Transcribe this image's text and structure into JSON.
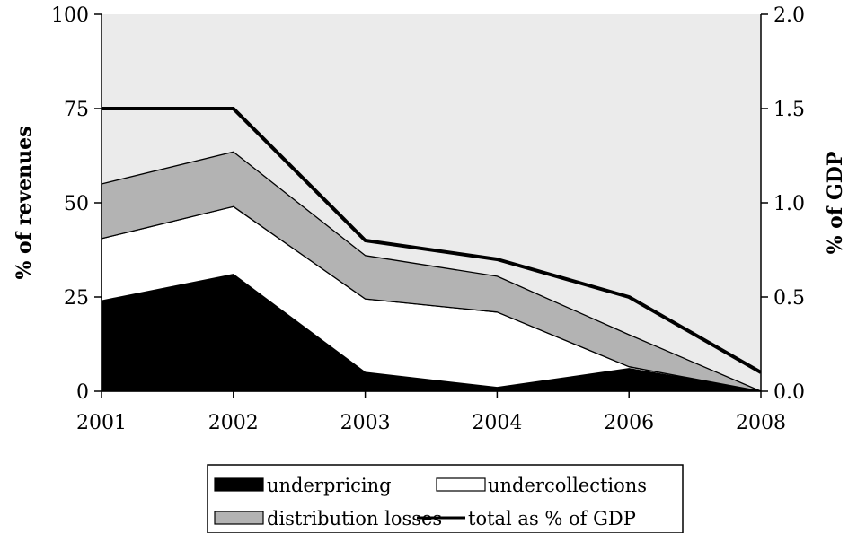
{
  "chart_data": {
    "type": "area",
    "categories": [
      "2001",
      "2002",
      "2003",
      "2004",
      "2006",
      "2008"
    ],
    "series": [
      {
        "name": "underpricing",
        "values": [
          24,
          31,
          5,
          1,
          6,
          0
        ],
        "color": "#000000"
      },
      {
        "name": "undercollections",
        "values": [
          16.5,
          18,
          19.5,
          20,
          0.5,
          0
        ],
        "color": "#ffffff"
      },
      {
        "name": "distribution losses",
        "values": [
          14.5,
          14.5,
          11.5,
          9.5,
          8.5,
          0
        ],
        "color": "#b3b3b3"
      },
      {
        "name": "total as % of GDP",
        "type": "line",
        "axis": "right",
        "values": [
          1.5,
          1.5,
          0.8,
          0.7,
          0.5,
          0.1
        ],
        "color": "#000000"
      }
    ],
    "ylabel": "% of revenues",
    "ylim": [
      0,
      100
    ],
    "yticks": [
      "0",
      "25",
      "50",
      "75",
      "100"
    ],
    "y2label": "% of GDP",
    "y2lim": [
      0,
      2
    ],
    "y2ticks": [
      "0.0",
      "0.5",
      "1.0",
      "1.5",
      "2.0"
    ],
    "background_color": "#ebebeb",
    "legend_position": "bottom",
    "grid": false
  }
}
